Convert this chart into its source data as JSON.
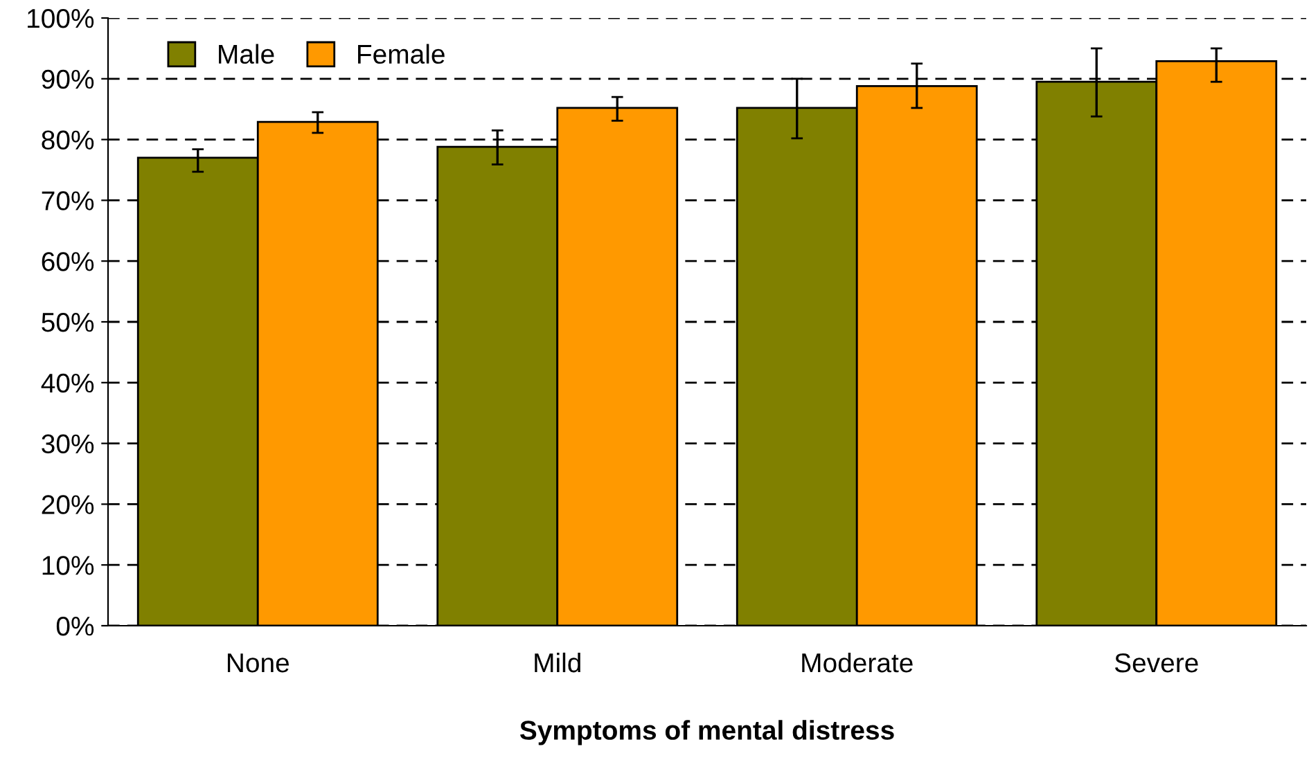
{
  "chart_data": {
    "type": "bar",
    "xlabel": "Symptoms of mental distress",
    "categories": [
      "None",
      "Mild",
      "Moderate",
      "Severe"
    ],
    "series": [
      {
        "name": "Male",
        "color": "#808000",
        "values": [
          77.0,
          78.8,
          85.2,
          89.5
        ],
        "errors": [
          [
            74.7,
            78.4
          ],
          [
            75.9,
            81.5
          ],
          [
            80.2,
            90.0
          ],
          [
            83.8,
            95.0
          ]
        ]
      },
      {
        "name": "Female",
        "color": "#ff9900",
        "values": [
          82.9,
          85.2,
          88.8,
          92.9
        ],
        "errors": [
          [
            81.1,
            84.5
          ],
          [
            83.1,
            87.0
          ],
          [
            85.2,
            92.5
          ],
          [
            89.5,
            95.0
          ]
        ]
      }
    ],
    "ylim": [
      0,
      100
    ],
    "yticks": [
      {
        "value": 0,
        "label": "0%"
      },
      {
        "value": 10,
        "label": "10%"
      },
      {
        "value": 20,
        "label": "20%"
      },
      {
        "value": 30,
        "label": "30%"
      },
      {
        "value": 40,
        "label": "40%"
      },
      {
        "value": 50,
        "label": "50%"
      },
      {
        "value": 60,
        "label": "60%"
      },
      {
        "value": 70,
        "label": "70%"
      },
      {
        "value": 80,
        "label": "80%"
      },
      {
        "value": 90,
        "label": "90%"
      },
      {
        "value": 100,
        "label": "100%"
      }
    ],
    "grid": "y",
    "legend": "top left",
    "line_style": "dashed"
  }
}
